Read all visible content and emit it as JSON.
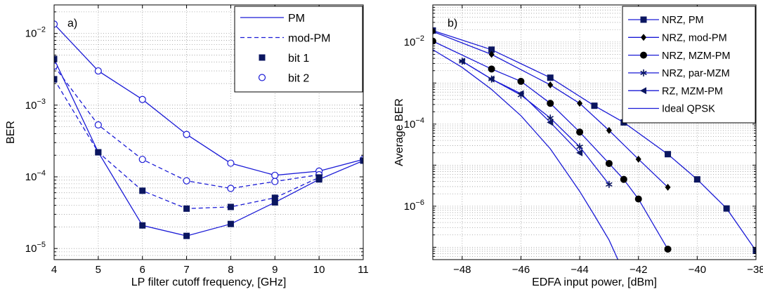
{
  "colors": {
    "series": "#1a1ad6",
    "axis": "#000000",
    "grid": "#9a9a9a"
  },
  "chart_data": [
    {
      "type": "line",
      "panel_label": "a)",
      "xlabel": "LP filter cutoff frequency, [GHz]",
      "ylabel": "BER",
      "xlim": [
        4,
        11
      ],
      "ylim": [
        7e-06,
        0.025
      ],
      "yscale": "log",
      "grid": "dotted",
      "legend_position": "top-right",
      "xticks": [
        4,
        5,
        6,
        7,
        8,
        9,
        10,
        11
      ],
      "xtick_labels": [
        "4",
        "5",
        "6",
        "7",
        "8",
        "9",
        "10",
        "11"
      ],
      "yticks": [
        1e-05,
        0.0001,
        0.001,
        0.01
      ],
      "ytick_labels": [
        [
          "10",
          "−5"
        ],
        [
          "10",
          "−4"
        ],
        [
          "10",
          "−3"
        ],
        [
          "10",
          "−2"
        ]
      ],
      "legend": [
        {
          "label": "PM",
          "line": "solid",
          "marker": "none"
        },
        {
          "label": "mod-PM",
          "line": "dashed",
          "marker": "none"
        },
        {
          "label": "bit 1",
          "line": "none",
          "marker": "square"
        },
        {
          "label": "bit 2",
          "line": "none",
          "marker": "circle-open"
        }
      ],
      "series": [
        {
          "line": "solid",
          "marker": "circle-open",
          "x": [
            4,
            5,
            6,
            7,
            8,
            9,
            10,
            11
          ],
          "y": [
            0.0135,
            0.003,
            0.0012,
            0.00039,
            0.000155,
            0.000105,
            0.00012,
            0.000175
          ]
        },
        {
          "line": "solid",
          "marker": "square",
          "x": [
            4,
            5,
            6,
            7,
            8,
            9,
            10,
            11
          ],
          "y": [
            0.0044,
            0.00022,
            2.1e-05,
            1.5e-05,
            2.2e-05,
            4.4e-05,
            9.2e-05,
            0.000168
          ]
        },
        {
          "line": "dashed",
          "marker": "circle-open",
          "x": [
            4,
            5,
            6,
            7,
            8,
            9,
            10
          ],
          "y": [
            0.0035,
            0.00053,
            0.000175,
            8.8e-05,
            6.9e-05,
            8.6e-05,
            0.000107
          ]
        },
        {
          "line": "dashed",
          "marker": "square",
          "x": [
            4,
            5,
            6,
            7,
            8,
            9,
            10
          ],
          "y": [
            0.0023,
            0.00022,
            6.4e-05,
            3.6e-05,
            3.8e-05,
            5.1e-05,
            9.8e-05
          ]
        }
      ]
    },
    {
      "type": "line",
      "panel_label": "b)",
      "xlabel": "EDFA input power, [dBm]",
      "ylabel": "Average BER",
      "xlim": [
        -49,
        -38
      ],
      "ylim": [
        5e-08,
        0.08
      ],
      "yscale": "log",
      "grid": "dotted",
      "legend_position": "top-right",
      "xticks": [
        -48,
        -46,
        -44,
        -42,
        -40,
        -38
      ],
      "xtick_labels": [
        "−48",
        "−46",
        "−44",
        "−42",
        "−40",
        "−38"
      ],
      "yticks": [
        1e-06,
        0.0001,
        0.01
      ],
      "ytick_labels": [
        [
          "10",
          "−6"
        ],
        [
          "10",
          "−4"
        ],
        [
          "10",
          "−2"
        ]
      ],
      "series": [
        {
          "name": "NRZ, PM",
          "marker": "square",
          "x": [
            -49,
            -47,
            -45,
            -43.5,
            -42.5,
            -41,
            -40,
            -39,
            -38
          ],
          "y": [
            0.019,
            0.0065,
            0.00135,
            0.00028,
            0.00011,
            1.85e-05,
            4.5e-06,
            8.8e-07,
            8.2e-08
          ]
        },
        {
          "name": "NRZ, mod-PM",
          "marker": "diamond",
          "x": [
            -49,
            -47,
            -45,
            -44,
            -43,
            -42,
            -41
          ],
          "y": [
            0.018,
            0.005,
            0.0009,
            0.00032,
            7e-05,
            1.4e-05,
            2.9e-06
          ]
        },
        {
          "name": "NRZ, MZM-PM",
          "marker": "circle",
          "x": [
            -49,
            -47,
            -46,
            -45,
            -44,
            -43,
            -42.5,
            -42,
            -41
          ],
          "y": [
            0.0105,
            0.0022,
            0.0011,
            0.00032,
            6.4e-05,
            1.1e-05,
            4.5e-06,
            1.5e-06,
            9e-08
          ]
        },
        {
          "name": "NRZ, par-MZM",
          "marker": "star",
          "x": [
            -48,
            -47,
            -46,
            -45,
            -44,
            -43
          ],
          "y": [
            0.0034,
            0.00125,
            0.00051,
            0.00014,
            2.8e-05,
            3.4e-06
          ]
        },
        {
          "name": "RZ, MZM-PM",
          "marker": "triangle-left",
          "x": [
            -48,
            -47,
            -46,
            -45,
            -44
          ],
          "y": [
            0.0034,
            0.00125,
            0.00055,
            0.00011,
            2e-05
          ]
        },
        {
          "name": "Ideal QPSK",
          "marker": "none",
          "x": [
            -49,
            -48,
            -47,
            -46,
            -45,
            -44,
            -43.5,
            -43,
            -42.7
          ],
          "y": [
            0.0065,
            0.0024,
            0.0007,
            0.00016,
            2.5e-05,
            2.3e-06,
            6e-07,
            1.5e-07,
            5e-08
          ]
        }
      ]
    }
  ]
}
